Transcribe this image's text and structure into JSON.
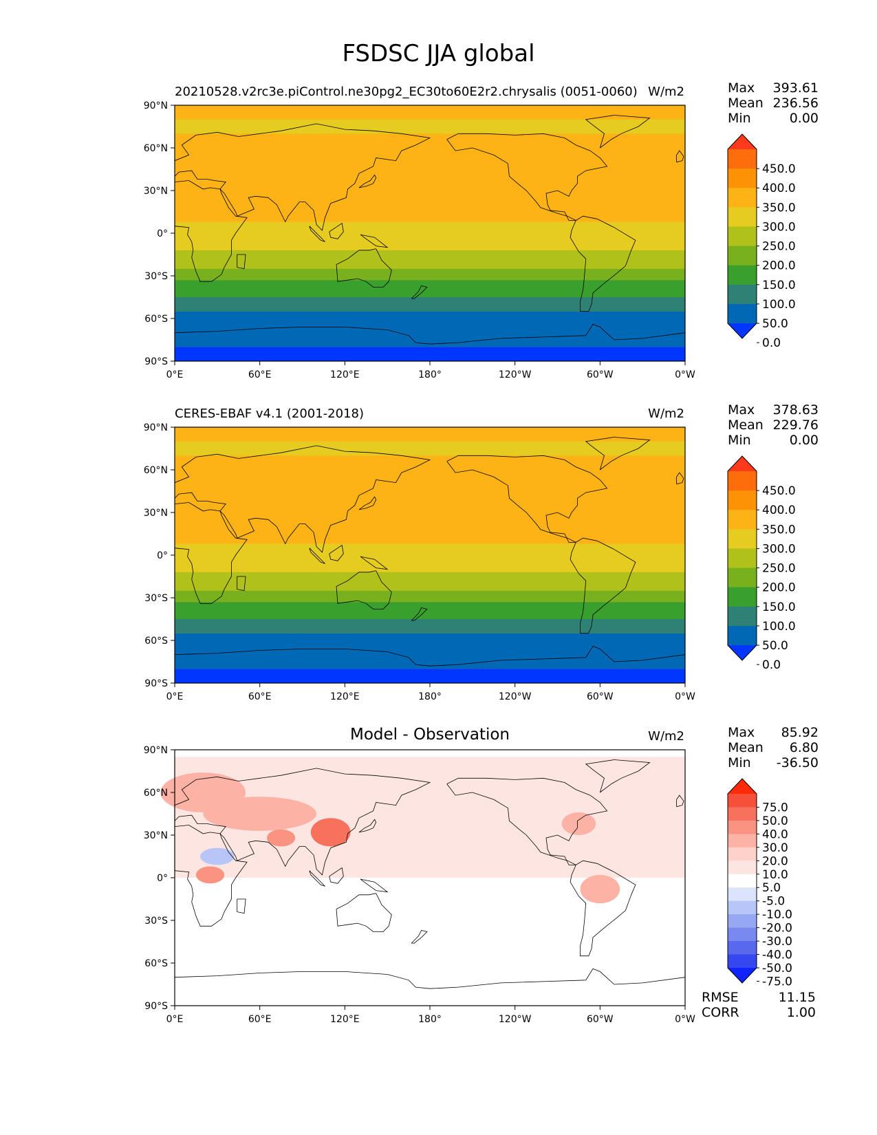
{
  "title": "FSDSC JJA global",
  "panels": [
    {
      "left_title": "20210528.v2rc3e.piControl.ne30pg2_EC30to60E2r2.chrysalis (0051-0060)",
      "center_title": "",
      "units": "W/m2",
      "stats": {
        "max_label": "Max",
        "max": "393.61",
        "mean_label": "Mean",
        "mean": "236.56",
        "min_label": "Min",
        "min": "0.00"
      },
      "colorbar": {
        "labels": [
          "450.0",
          "400.0",
          "350.0",
          "300.0",
          "250.0",
          "200.0",
          "150.0",
          "100.0",
          "50.0",
          "0.0"
        ],
        "colors": [
          "#ff3a1c",
          "#fd6d0b",
          "#fd9206",
          "#fdb316",
          "#e6cb20",
          "#b0c11b",
          "#79b01e",
          "#3aa02d",
          "#2e8275",
          "#0068b4",
          "#0036ff"
        ]
      },
      "latitude_bands": [
        "#fdb316",
        "#e6cb20",
        "#b0c11b",
        "#79b01e",
        "#3aa02d",
        "#2e8275",
        "#0068b4",
        "#0036ff"
      ]
    },
    {
      "left_title": "CERES-EBAF v4.1 (2001-2018)",
      "center_title": "",
      "units": "W/m2",
      "stats": {
        "max_label": "Max",
        "max": "378.63",
        "mean_label": "Mean",
        "mean": "229.76",
        "min_label": "Min",
        "min": "0.00"
      },
      "colorbar": {
        "labels": [
          "450.0",
          "400.0",
          "350.0",
          "300.0",
          "250.0",
          "200.0",
          "150.0",
          "100.0",
          "50.0",
          "0.0"
        ],
        "colors": [
          "#ff3a1c",
          "#fd6d0b",
          "#fd9206",
          "#fdb316",
          "#e6cb20",
          "#b0c11b",
          "#79b01e",
          "#3aa02d",
          "#2e8275",
          "#0068b4",
          "#0036ff"
        ]
      },
      "latitude_bands": [
        "#fdb316",
        "#e6cb20",
        "#b0c11b",
        "#79b01e",
        "#3aa02d",
        "#2e8275",
        "#0068b4",
        "#0036ff"
      ]
    },
    {
      "left_title": "",
      "center_title": "Model - Observation",
      "units": "W/m2",
      "stats": {
        "max_label": "Max",
        "max": "85.92",
        "mean_label": "Mean",
        "mean": "6.80",
        "min_label": "Min",
        "min": "-36.50"
      },
      "colorbar": {
        "labels": [
          "75.0",
          "50.0",
          "40.0",
          "30.0",
          "20.0",
          "10.0",
          "5.0",
          "-5.0",
          "-10.0",
          "-20.0",
          "-30.0",
          "-40.0",
          "-50.0",
          "-75.0"
        ],
        "colors": [
          "#ff2a0a",
          "#f6503a",
          "#f8715d",
          "#fa9382",
          "#fcb3a6",
          "#fed2ca",
          "#fde6e1",
          "#ffffff",
          "#dce4fb",
          "#b8c6f7",
          "#97a8f3",
          "#7889f0",
          "#5869ed",
          "#3547ee",
          "#0f24ff"
        ]
      },
      "extra_stats": {
        "rmse_label": "RMSE",
        "rmse": "11.15",
        "corr_label": "CORR",
        "corr": "1.00"
      }
    }
  ],
  "axes": {
    "lat_ticks": [
      "90°N",
      "60°N",
      "30°N",
      "0°",
      "30°S",
      "60°S",
      "90°S"
    ],
    "lon_ticks": [
      "0°E",
      "60°E",
      "120°E",
      "180°",
      "120°W",
      "60°W",
      "0°W"
    ]
  }
}
